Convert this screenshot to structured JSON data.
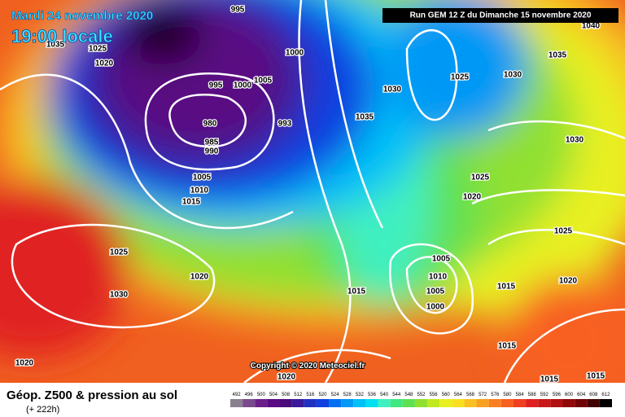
{
  "header": {
    "date": "Mardi 24 novembre 2020",
    "time": "19:00 locale",
    "run": "Run GEM 12 Z du Dimanche 15 novembre 2020"
  },
  "copyright": "Copyright © 2020 Meteociel.fr",
  "footer": {
    "title": "Géop. Z500 & pression au sol",
    "lead": "(+ 222h)"
  },
  "legend": {
    "values": [
      492,
      496,
      500,
      504,
      508,
      512,
      516,
      520,
      524,
      528,
      532,
      536,
      540,
      544,
      548,
      552,
      556,
      560,
      564,
      568,
      572,
      576,
      580,
      584,
      588,
      592,
      596,
      600,
      604,
      608,
      612
    ],
    "colors": [
      "#8a7f8f",
      "#7a4a8f",
      "#6a1f8a",
      "#5a0a82",
      "#4a0a7a",
      "#3a1a9a",
      "#2030c0",
      "#1040e0",
      "#0070f0",
      "#0098f5",
      "#00c0f8",
      "#00e0f0",
      "#40f0c0",
      "#40e880",
      "#60e050",
      "#90e030",
      "#c0e820",
      "#e8f020",
      "#f8e020",
      "#f8c020",
      "#f8a020",
      "#f88020",
      "#f86020",
      "#f04020",
      "#e02020",
      "#c81818",
      "#b01010",
      "#900808",
      "#700404",
      "#400202",
      "#000000"
    ]
  },
  "isobars": [
    "995",
    "1025",
    "1020",
    "1035",
    "1000",
    "995",
    "1000",
    "1005",
    "980",
    "985",
    "990",
    "993",
    "1005",
    "1010",
    "1015",
    "1030",
    "1035",
    "1025",
    "1030",
    "1035",
    "1040",
    "1030",
    "1025",
    "1020",
    "1025",
    "1025",
    "1030",
    "1020",
    "1020",
    "1015",
    "1005",
    "1010",
    "1005",
    "1000",
    "1015",
    "1020",
    "1015",
    "1015",
    "1015",
    "1020"
  ]
}
